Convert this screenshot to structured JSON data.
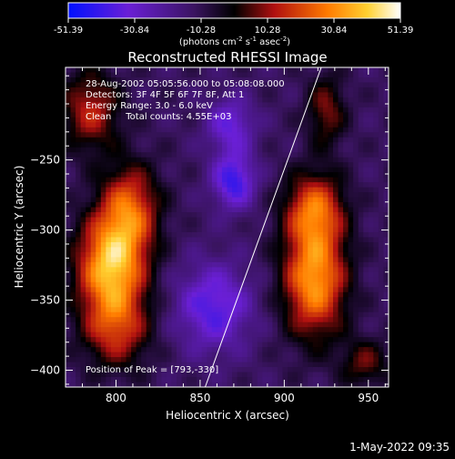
{
  "chart_data": {
    "type": "heatmap",
    "title": "Reconstructed RHESSI Image",
    "xlabel": "Heliocentric X (arcsec)",
    "ylabel": "Heliocentric Y (arcsec)",
    "xlim": [
      770,
      962
    ],
    "ylim": [
      -412,
      -184
    ],
    "xticks": [
      800,
      850,
      900,
      950
    ],
    "yticks": [
      -250,
      -300,
      -350,
      -400
    ],
    "colorbar": {
      "ticks": [
        "-51.39",
        "-30.84",
        "-10.28",
        "10.28",
        "30.84",
        "51.39"
      ],
      "range": [
        -51.39,
        51.39
      ],
      "unit_base": "(photons cm",
      "unit_exp1": "-2",
      "unit_mid": " s",
      "unit_exp2": "-1",
      "unit_mid2": " asec",
      "unit_exp3": "-2",
      "unit_end": ")"
    },
    "annotations": [
      "28-Aug-2002 05:05:56.000 to 05:08:08.000",
      "Detectors: 3F 4F 5F 6F 7F 8F, Att 1",
      "Energy Range: 3.0 - 6.0 keV",
      "Clean     Total counts: 4.55E+03"
    ],
    "peak_label": "Position of Peak = [793,-330]",
    "peak": [
      793,
      -330
    ],
    "limb_line": [
      [
        853,
        -412
      ],
      [
        922,
        -184
      ]
    ],
    "sources": [
      {
        "x": 797,
        "y": -325,
        "sigma_x": 14,
        "sigma_y": 24,
        "amp": 50
      },
      {
        "x": 808,
        "y": -285,
        "sigma_x": 12,
        "sigma_y": 22,
        "amp": 34
      },
      {
        "x": 785,
        "y": -215,
        "sigma_x": 12,
        "sigma_y": 20,
        "amp": 26
      },
      {
        "x": 800,
        "y": -370,
        "sigma_x": 14,
        "sigma_y": 20,
        "amp": 28
      },
      {
        "x": 918,
        "y": -335,
        "sigma_x": 13,
        "sigma_y": 28,
        "amp": 46
      },
      {
        "x": 918,
        "y": -285,
        "sigma_x": 12,
        "sigma_y": 18,
        "amp": 34
      },
      {
        "x": 925,
        "y": -215,
        "sigma_x": 8,
        "sigma_y": 18,
        "amp": 20
      },
      {
        "x": 948,
        "y": -395,
        "sigma_x": 10,
        "sigma_y": 12,
        "amp": 18
      },
      {
        "x": 870,
        "y": -265,
        "sigma_x": 9,
        "sigma_y": 14,
        "amp": -30
      },
      {
        "x": 858,
        "y": -355,
        "sigma_x": 16,
        "sigma_y": 22,
        "amp": -26
      },
      {
        "x": 868,
        "y": -225,
        "sigma_x": 10,
        "sigma_y": 14,
        "amp": -22
      }
    ],
    "background": -12
  },
  "footer": {
    "timestamp": "1-May-2022 09:35"
  }
}
